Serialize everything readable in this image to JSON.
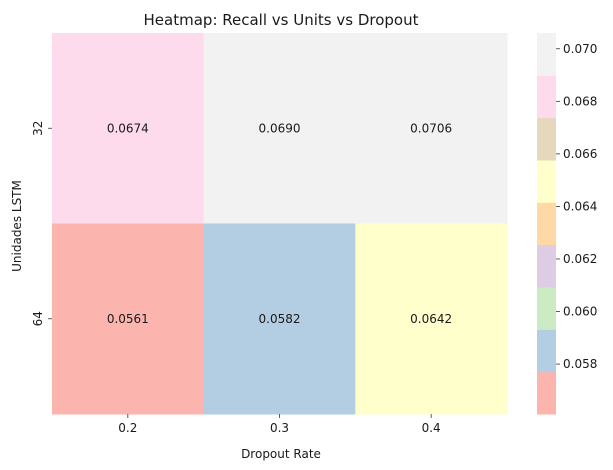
{
  "chart_data": {
    "type": "heatmap",
    "title": "Heatmap: Recall vs Units vs Dropout",
    "xlabel": "Dropout Rate",
    "ylabel": "Unidades LSTM",
    "x_categories": [
      "0.2",
      "0.3",
      "0.4"
    ],
    "y_categories": [
      "32",
      "64"
    ],
    "values": [
      [
        0.0674,
        0.069,
        0.0706
      ],
      [
        0.0561,
        0.0582,
        0.0642
      ]
    ],
    "cell_labels": [
      [
        "0.0674",
        "0.0690",
        "0.0706"
      ],
      [
        "0.0561",
        "0.0582",
        "0.0642"
      ]
    ],
    "colorbar": {
      "range": [
        0.0561,
        0.0706
      ],
      "ticks": [
        "0.058",
        "0.060",
        "0.062",
        "0.064",
        "0.066",
        "0.068",
        "0.070"
      ],
      "tick_values": [
        0.058,
        0.06,
        0.062,
        0.064,
        0.066,
        0.068,
        0.07
      ],
      "colormap": "Pastel1",
      "colors": [
        "#fbb4ae",
        "#b3cde3",
        "#ccebc5",
        "#decbe4",
        "#fed9a6",
        "#ffffcc",
        "#e5d8bd",
        "#fddaec",
        "#f2f2f2"
      ]
    },
    "grid": false
  }
}
